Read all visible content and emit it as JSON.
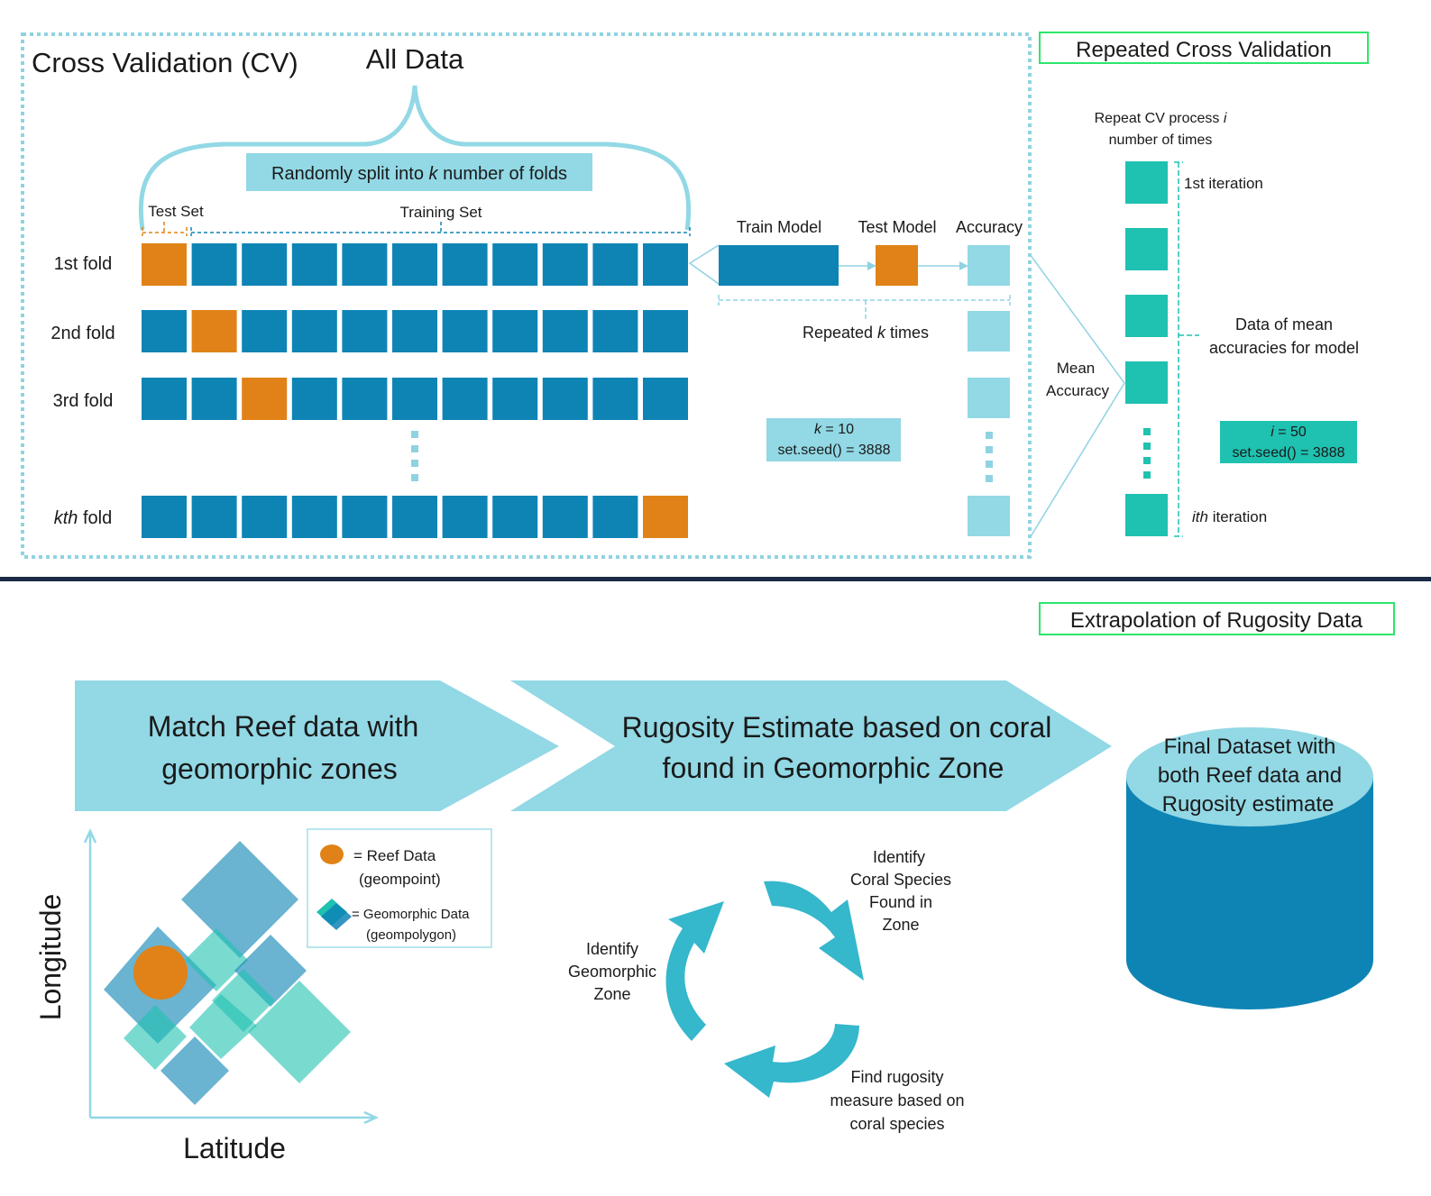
{
  "cv": {
    "title": "Cross Validation (CV)",
    "all_data": "All Data",
    "split_label_pre": "Randomly split into ",
    "split_label_k": "k",
    "split_label_post": " number of folds",
    "test_set": "Test Set",
    "training_set": "Training Set",
    "fold_labels": [
      "1st fold",
      "2nd fold",
      "3rd fold"
    ],
    "kth_fold_italic": "kth",
    "kth_fold_rest": " fold",
    "test_positions": [
      0,
      1,
      2,
      10
    ],
    "blocks_per_fold": 11,
    "train_model": "Train Model",
    "test_model": "Test Model",
    "accuracy": "Accuracy",
    "repeated_pre": "Repeated ",
    "repeated_k": "k",
    "repeated_post": " times",
    "k_italic": "k",
    "k_value": " = 10",
    "seed": "set.seed() = 3888",
    "mean_accuracy_line1": "Mean",
    "mean_accuracy_line2": "Accuracy"
  },
  "rcv": {
    "title": "Repeated Cross Validation",
    "repeat_line1_pre": "Repeat CV process ",
    "repeat_line1_i": "i",
    "repeat_line2": "number of times",
    "first_iteration": "1st iteration",
    "ith_italic": "ith",
    "ith_rest": " iteration",
    "data_line1": "Data of mean",
    "data_line2": "accuracies for model",
    "i_italic": "i",
    "i_value": " = 50",
    "seed": "set.seed() = 3888"
  },
  "extrapolation": {
    "title": "Extrapolation of Rugosity Data",
    "step1_line1": "Match Reef data with",
    "step1_line2": "geomorphic zones",
    "step2_line1": "Rugosity Estimate based on coral",
    "step2_line2": "found in Geomorphic Zone",
    "final_line1": "Final Dataset with",
    "final_line2": "both Reef data and",
    "final_line3": "Rugosity estimate",
    "legend_reef_line1": "= Reef Data",
    "legend_reef_line2": "(geompoint)",
    "legend_geo_line1": "= Geomorphic Data",
    "legend_geo_line2": "(geompolygon)",
    "axis_y": "Longitude",
    "axis_x": "Latitude",
    "cycle_identify_coral": [
      "Identify",
      "Coral Species",
      "Found in",
      "Zone"
    ],
    "cycle_identify_geo": [
      "Identify",
      "Geomorphic",
      "Zone"
    ],
    "cycle_find_rugosity": [
      "Find rugosity",
      "measure based on",
      "coral species"
    ]
  },
  "colors": {
    "blue": "#0e84b5",
    "orange": "#e08217",
    "light_blue": "#92d8e5",
    "teal": "#1fc1b0",
    "cycle": "#35b7cc",
    "navy": "#1b2a44",
    "green_border": "#2ee66b",
    "dotted": "#8fd3e2"
  }
}
